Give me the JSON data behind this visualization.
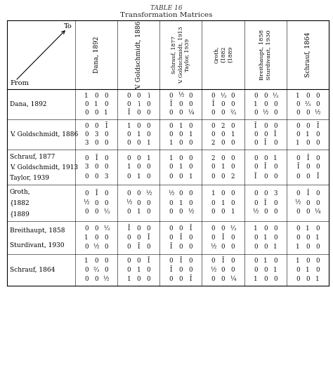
{
  "title1": "TABLE 16",
  "title2": "Transformation Matrices",
  "col_headers": [
    "Dana, 1892",
    "V. Goldschmidt, 1886",
    "Schrauf, 1877\nV. Goldschmidt, 1913\nTaylor, 1939",
    "Groth,\n{1882\n{1889",
    "Breithaupt, 1858\nSturdivant, 1930",
    "Schrauf, 1864"
  ],
  "row_headers": [
    "Dana, 1892",
    "V. Goldschmidt, 1886",
    "Schrauf, 1877\nV. Goldschmidt, 1913\nTaylor, 1939",
    "Groth,\n{1882\n{1889",
    "Breithaupt, 1858\nSturdivant, 1930",
    "Schrauf, 1864"
  ],
  "matrices": [
    [
      [
        [
          "1",
          "0",
          "0"
        ],
        [
          "0",
          "1",
          "0"
        ],
        [
          "0",
          "0",
          "1"
        ]
      ],
      [
        [
          "0",
          "0",
          "ī"
        ],
        [
          "0",
          "ī",
          "0"
        ],
        [
          "Ī",
          "0",
          "0"
        ]
      ],
      [
        [
          "0",
          "½",
          "0"
        ],
        [
          "Ī",
          "0",
          "0"
        ],
        [
          "0",
          "0",
          "¼"
        ]
      ],
      [
        [
          "0",
          "⅓",
          "0"
        ],
        [
          "Ī",
          "0",
          "0"
        ],
        [
          "0",
          "0",
          "⅔"
        ]
      ],
      [
        [
          "0",
          "0",
          "⅓"
        ],
        [
          "1",
          "0",
          "0"
        ],
        [
          "0",
          "½",
          "0"
        ]
      ],
      [
        [
          "1",
          "0",
          "0"
        ],
        [
          "0",
          "⅔",
          "0"
        ],
        [
          "0",
          "0",
          "½"
        ]
      ]
    ],
    [
      [
        [
          "0",
          "0",
          "Ī"
        ],
        [
          "0",
          "3",
          "0"
        ],
        [
          "3",
          "0",
          "0"
        ]
      ],
      [
        [
          "1",
          "0",
          "0"
        ],
        [
          "0",
          "1",
          "0"
        ],
        [
          "0",
          "0",
          "1"
        ]
      ],
      [
        [
          "0",
          "1",
          "0"
        ],
        [
          "0",
          "0",
          "1"
        ],
        [
          "1",
          "0",
          "0"
        ]
      ],
      [
        [
          "0",
          "2",
          "0"
        ],
        [
          "0",
          "0",
          "1"
        ],
        [
          "2",
          "0",
          "0"
        ]
      ],
      [
        [
          "Ī",
          "0",
          "0"
        ],
        [
          "0",
          "0",
          "Ī"
        ],
        [
          "0",
          "Ī",
          "0"
        ]
      ],
      [
        [
          "0",
          "0",
          "Ī"
        ],
        [
          "0",
          "1",
          "0"
        ],
        [
          "1",
          "0",
          "0"
        ]
      ]
    ],
    [
      [
        [
          "0",
          "Ī",
          "0"
        ],
        [
          "3",
          "0",
          "0"
        ],
        [
          "0",
          "0",
          "3"
        ]
      ],
      [
        [
          "0",
          "0",
          "1"
        ],
        [
          "1",
          "0",
          "0"
        ],
        [
          "0",
          "1",
          "0"
        ]
      ],
      [
        [
          "1",
          "0",
          "0"
        ],
        [
          "0",
          "1",
          "0"
        ],
        [
          "0",
          "0",
          "1"
        ]
      ],
      [
        [
          "2",
          "0",
          "0"
        ],
        [
          "0",
          "1",
          "0"
        ],
        [
          "0",
          "0",
          "2"
        ]
      ],
      [
        [
          "0",
          "0",
          "1"
        ],
        [
          "0",
          "Ī",
          "0"
        ],
        [
          "Ī",
          "0",
          "0"
        ]
      ],
      [
        [
          "0",
          "Ī",
          "0"
        ],
        [
          "Ī",
          "0",
          "0"
        ],
        [
          "0",
          "0",
          "Ī"
        ]
      ]
    ],
    [
      [
        [
          "0",
          "Ī",
          "0"
        ],
        [
          "½",
          "0",
          "0"
        ],
        [
          "0",
          "0",
          "⅓"
        ]
      ],
      [
        [
          "0",
          "0",
          "½"
        ],
        [
          "½",
          "0",
          "0"
        ],
        [
          "0",
          "1",
          "0"
        ]
      ],
      [
        [
          "½",
          "0",
          "0"
        ],
        [
          "0",
          "1",
          "0"
        ],
        [
          "0",
          "0",
          "½"
        ]
      ],
      [
        [
          "1",
          "0",
          "0"
        ],
        [
          "0",
          "1",
          "0"
        ],
        [
          "0",
          "0",
          "1"
        ]
      ],
      [
        [
          "0",
          "0",
          "3"
        ],
        [
          "0",
          "Ī",
          "0"
        ],
        [
          "½",
          "0",
          "0"
        ]
      ],
      [
        [
          "0",
          "Ī",
          "0"
        ],
        [
          "½",
          "0",
          "0"
        ],
        [
          "0",
          "0",
          "¼"
        ]
      ]
    ],
    [
      [
        [
          "0",
          "0",
          "⅓"
        ],
        [
          "1",
          "0",
          "0"
        ],
        [
          "0",
          "½",
          "0"
        ]
      ],
      [
        [
          "Ī",
          "0",
          "0"
        ],
        [
          "0",
          "0",
          "Ī"
        ],
        [
          "0",
          "Ī",
          "0"
        ]
      ],
      [
        [
          "0",
          "0",
          "Ī"
        ],
        [
          "0",
          "Ī",
          "0"
        ],
        [
          "Ī",
          "0",
          "0"
        ]
      ],
      [
        [
          "0",
          "0",
          "⅓"
        ],
        [
          "0",
          "Ī",
          "0"
        ],
        [
          "½",
          "0",
          "0"
        ]
      ],
      [
        [
          "1",
          "0",
          "0"
        ],
        [
          "0",
          "1",
          "0"
        ],
        [
          "0",
          "0",
          "1"
        ]
      ],
      [
        [
          "0",
          "1",
          "0"
        ],
        [
          "0",
          "0",
          "1"
        ],
        [
          "1",
          "0",
          "0"
        ]
      ]
    ],
    [
      [
        [
          "1",
          "0",
          "0"
        ],
        [
          "0",
          "⅔",
          "0"
        ],
        [
          "0",
          "0",
          "½"
        ]
      ],
      [
        [
          "0",
          "0",
          "Ī"
        ],
        [
          "0",
          "1",
          "0"
        ],
        [
          "1",
          "0",
          "0"
        ]
      ],
      [
        [
          "0",
          "Ī",
          "0"
        ],
        [
          "Ī",
          "0",
          "0"
        ],
        [
          "0",
          "0",
          "Ī"
        ]
      ],
      [
        [
          "0",
          "Ī",
          "0"
        ],
        [
          "½",
          "0",
          "0"
        ],
        [
          "0",
          "0",
          "¼"
        ]
      ],
      [
        [
          "0",
          "1",
          "0"
        ],
        [
          "0",
          "0",
          "1"
        ],
        [
          "1",
          "0",
          "0"
        ]
      ],
      [
        [
          "1",
          "0",
          "0"
        ],
        [
          "0",
          "1",
          "0"
        ],
        [
          "0",
          "0",
          "1"
        ]
      ]
    ]
  ]
}
